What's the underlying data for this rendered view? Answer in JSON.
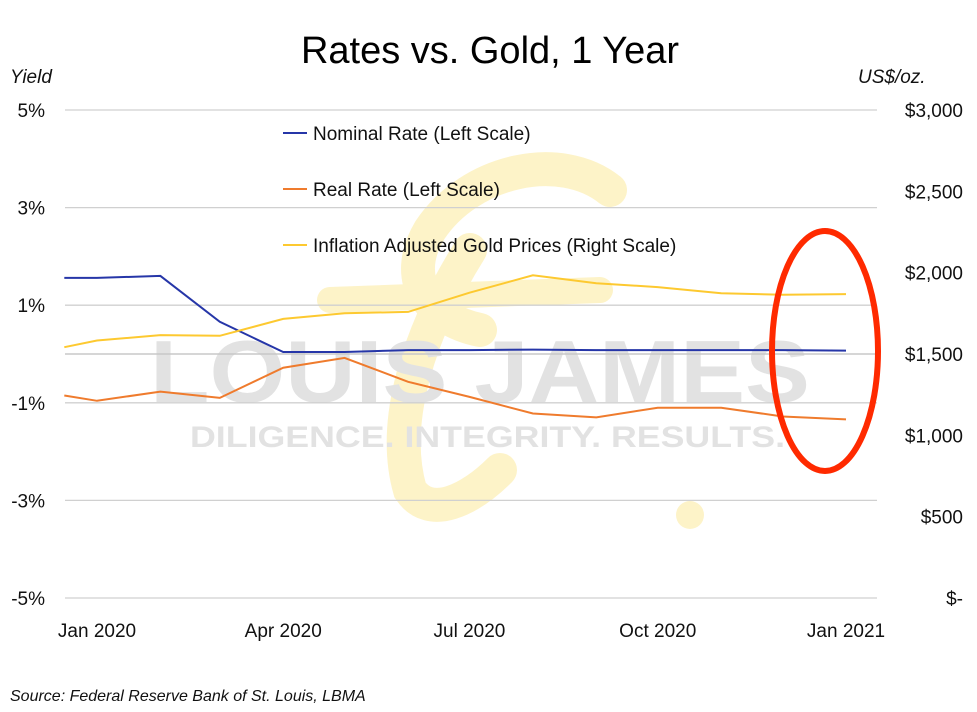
{
  "chart_data": {
    "type": "line",
    "title": "Rates vs. Gold, 1 Year",
    "ylabel_left": "Yield",
    "ylabel_right": "US$/oz.",
    "source": "Source: Federal Reserve Bank of St. Louis, LBMA",
    "x": [
      "2019-12-16",
      "2020-01-01",
      "2020-02-01",
      "2020-03-01",
      "2020-04-01",
      "2020-05-01",
      "2020-06-01",
      "2020-07-01",
      "2020-08-01",
      "2020-09-01",
      "2020-10-01",
      "2020-11-01",
      "2020-12-01",
      "2021-01-01"
    ],
    "x_tick_labels": [
      "Jan 2020",
      "Apr 2020",
      "Jul 2020",
      "Oct 2020",
      "Jan 2021"
    ],
    "x_tick_dates": [
      "2020-01-01",
      "2020-04-01",
      "2020-07-01",
      "2020-10-01",
      "2021-01-01"
    ],
    "ylim_left": [
      -5,
      5
    ],
    "y_ticks_left": [
      5,
      3,
      1,
      -1,
      -3,
      -5
    ],
    "y_tick_labels_left": [
      "5%",
      "3%",
      "1%",
      "-1%",
      "-3%",
      "-5%"
    ],
    "ylim_right": [
      0,
      3000
    ],
    "y_ticks_right": [
      3000,
      2500,
      2000,
      1500,
      1000,
      500,
      0
    ],
    "y_tick_labels_right": [
      "$3,000",
      "$2,500",
      "$2,000",
      "$1,500",
      "$1,000",
      "$500",
      "$-"
    ],
    "grid": true,
    "legend_placement": "top-center",
    "series": [
      {
        "name": "Nominal Rate (Left Scale)",
        "axis": "left",
        "color": "#2636a8",
        "values": [
          1.56,
          1.56,
          1.6,
          0.66,
          0.04,
          0.04,
          0.08,
          0.08,
          0.09,
          0.08,
          0.08,
          0.08,
          0.08,
          0.07
        ]
      },
      {
        "name": "Real Rate (Left Scale)",
        "axis": "left",
        "color": "#ef7b2d",
        "values": [
          -0.85,
          -0.96,
          -0.77,
          -0.9,
          -0.28,
          -0.08,
          -0.57,
          -0.88,
          -1.22,
          -1.3,
          -1.1,
          -1.1,
          -1.28,
          -1.34
        ]
      },
      {
        "name": "Inflation Adjusted Gold Prices (Right Scale)",
        "axis": "right",
        "color": "#fdc930",
        "values": [
          1542,
          1583,
          1616,
          1612,
          1716,
          1751,
          1759,
          1877,
          1984,
          1935,
          1911,
          1874,
          1864,
          1868
        ]
      }
    ],
    "annotation": {
      "type": "ellipse",
      "color": "#ff2a00",
      "around": "Dec 2020 - Jan 2021"
    }
  },
  "watermark": {
    "brand": "LOUIS £ JAMES",
    "tagline": "DILIGENCE. INTEGRITY. RESULTS."
  }
}
